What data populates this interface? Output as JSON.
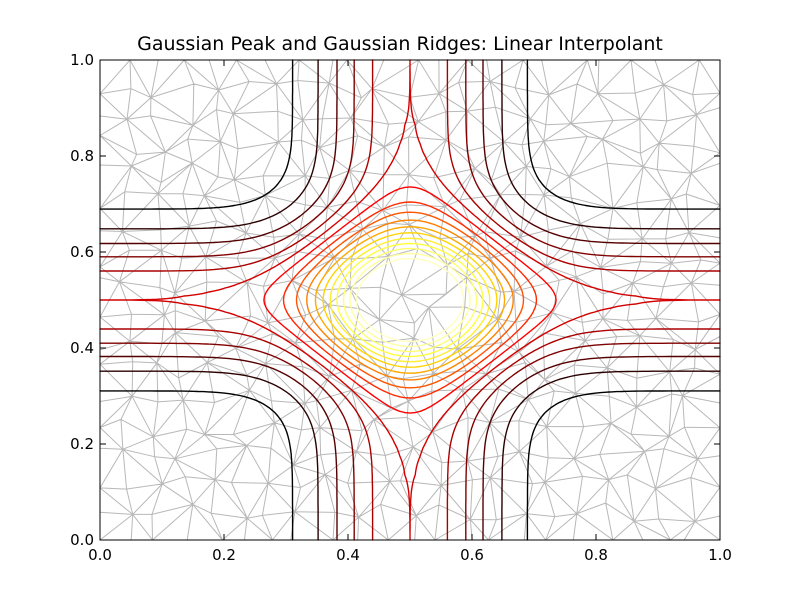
{
  "chart_data": {
    "type": "contour",
    "title": "Gaussian Peak and Gaussian Ridges: Linear Interpolant",
    "xlabel": "",
    "ylabel": "",
    "xlim": [
      0.0,
      1.0
    ],
    "ylim": [
      0.0,
      1.0
    ],
    "x_ticks": [
      "0.0",
      "0.2",
      "0.4",
      "0.6",
      "0.8",
      "1.0"
    ],
    "y_ticks": [
      "0.0",
      "0.2",
      "0.4",
      "0.6",
      "0.8",
      "1.0"
    ],
    "grid": false,
    "legend": "none",
    "overlay": "triangulation mesh",
    "mesh_color": "#b8b8b8",
    "colormap": "hot",
    "function": "peak centered at (0.5, 0.5) plus ridges along x=0.5 and y=0.5",
    "peak_center": [
      0.5,
      0.5
    ],
    "contour_levels": [
      0.1,
      0.2,
      0.3,
      0.4,
      0.5,
      0.6,
      0.7,
      0.8,
      0.9,
      1.0,
      1.1,
      1.2,
      1.3,
      1.4,
      1.5,
      1.6,
      1.7
    ],
    "level_colors": [
      "#000000",
      "#2a0000",
      "#550000",
      "#800000",
      "#aa0000",
      "#d40000",
      "#ff0000",
      "#ff2a00",
      "#ff5500",
      "#ff8000",
      "#ffaa00",
      "#ffd400",
      "#ffee30",
      "#ffff40",
      "#ffff70",
      "#ffffa0",
      "#ffffc0"
    ]
  }
}
